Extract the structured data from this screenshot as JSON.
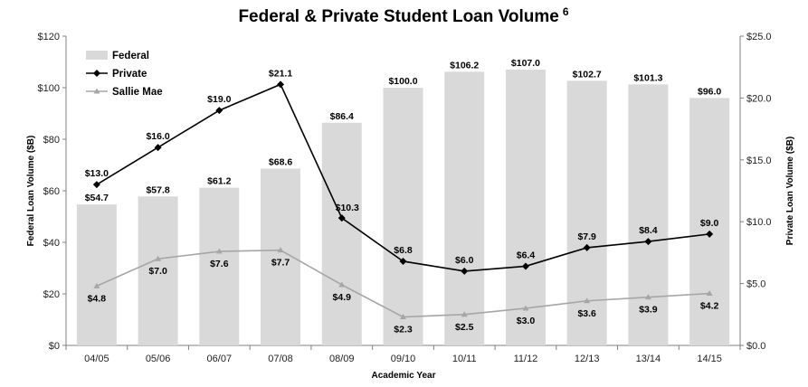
{
  "chart_data": {
    "type": "bar",
    "title": "Federal & Private Student Loan Volume",
    "title_superscript": "6",
    "xlabel": "Academic Year",
    "ylabel_left": "Federal Loan Volume ($B)",
    "ylabel_right": "Private Loan Volume ($B)",
    "categories": [
      "04/05",
      "05/06",
      "06/07",
      "07/08",
      "08/09",
      "09/10",
      "10/11",
      "11/12",
      "12/13",
      "13/14",
      "14/15"
    ],
    "ylim_left": [
      0,
      120
    ],
    "ylim_right": [
      0,
      25
    ],
    "yticks_left": [
      "$0",
      "$20",
      "$40",
      "$60",
      "$80",
      "$100",
      "$120"
    ],
    "yticks_right": [
      "$0.0",
      "$5.0",
      "$10.0",
      "$15.0",
      "$20.0",
      "$25.0"
    ],
    "yticks_left_values": [
      0,
      20,
      40,
      60,
      80,
      100,
      120
    ],
    "yticks_right_values": [
      0,
      5,
      10,
      15,
      20,
      25
    ],
    "legend_position": "top-left",
    "grid": false,
    "series": [
      {
        "name": "Federal",
        "kind": "bar",
        "axis": "left",
        "color": "#d9d9d9",
        "values": [
          54.7,
          57.8,
          61.2,
          68.6,
          86.4,
          100.0,
          106.2,
          107.0,
          102.7,
          101.3,
          96.0
        ],
        "labels": [
          "$54.7",
          "$57.8",
          "$61.2",
          "$68.6",
          "$86.4",
          "$100.0",
          "$106.2",
          "$107.0",
          "$102.7",
          "$101.3",
          "$96.0"
        ]
      },
      {
        "name": "Private",
        "kind": "line",
        "axis": "right",
        "color": "#000000",
        "marker": "diamond",
        "values": [
          13.0,
          16.0,
          19.0,
          21.1,
          10.3,
          6.8,
          6.0,
          6.4,
          7.9,
          8.4,
          9.0
        ],
        "labels": [
          "$13.0",
          "$16.0",
          "$19.0",
          "$21.1",
          "$10.3",
          "$6.8",
          "$6.0",
          "$6.4",
          "$7.9",
          "$8.4",
          "$9.0"
        ]
      },
      {
        "name": "Sallie Mae",
        "kind": "line",
        "axis": "right",
        "color": "#a6a6a6",
        "marker": "triangle",
        "values": [
          4.8,
          7.0,
          7.6,
          7.7,
          4.9,
          2.3,
          2.5,
          3.0,
          3.6,
          3.9,
          4.2
        ],
        "labels": [
          "$4.8",
          "$7.0",
          "$7.6",
          "$7.7",
          "$4.9",
          "$2.3",
          "$2.5",
          "$3.0",
          "$3.6",
          "$3.9",
          "$4.2"
        ]
      }
    ]
  }
}
